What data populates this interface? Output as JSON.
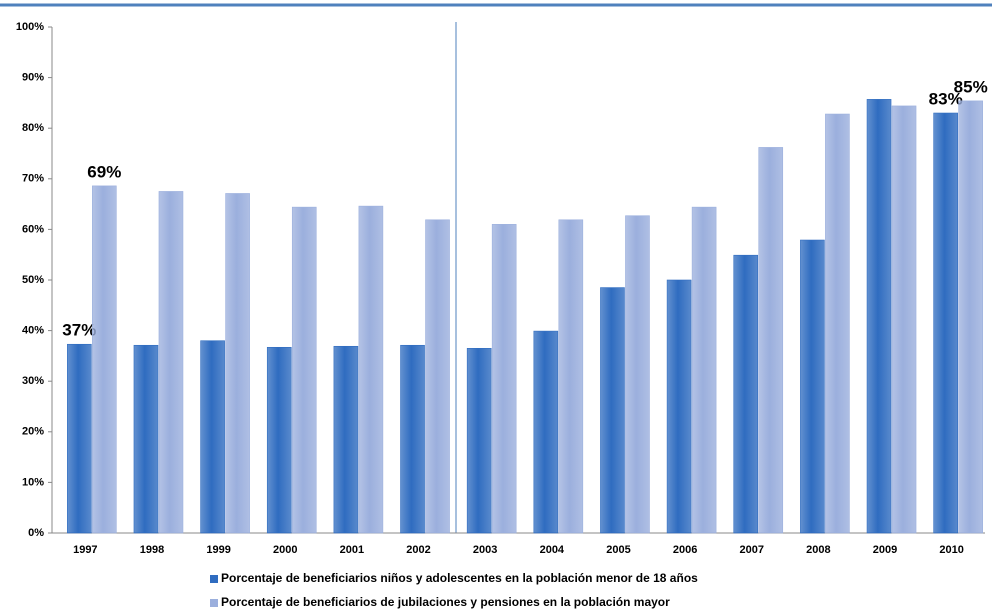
{
  "chart_data": {
    "type": "bar",
    "categories": [
      "1997",
      "1998",
      "1999",
      "2000",
      "2001",
      "2002",
      "2003",
      "2004",
      "2005",
      "2006",
      "2007",
      "2008",
      "2009",
      "2010"
    ],
    "series": [
      {
        "name": "Porcentaje de beneficiarios niños y adolescentes en la población menor de 18 años",
        "color": "#2f6cc0",
        "values": [
          37.3,
          37.1,
          38,
          36.7,
          36.9,
          37.1,
          36.5,
          39.9,
          48.5,
          50,
          54.9,
          57.9,
          85.7,
          83
        ],
        "value_labels": [
          "37%",
          null,
          null,
          null,
          null,
          null,
          null,
          null,
          null,
          null,
          null,
          null,
          null,
          "83%"
        ]
      },
      {
        "name": "Porcentaje de beneficiarios de jubilaciones y pensiones en la población mayor",
        "color": "#9bafdd",
        "values": [
          68.6,
          67.5,
          67.1,
          64.4,
          64.6,
          61.9,
          61,
          61.9,
          62.7,
          64.4,
          76.2,
          82.8,
          84.4,
          85.4
        ],
        "value_labels": [
          "69%",
          null,
          null,
          null,
          null,
          null,
          null,
          null,
          null,
          null,
          null,
          null,
          null,
          "85%"
        ]
      }
    ],
    "ylim": [
      0,
      100
    ],
    "yticks": [
      {
        "value": 0,
        "label": "0%"
      },
      {
        "value": 10,
        "label": "10%"
      },
      {
        "value": 20,
        "label": "20%"
      },
      {
        "value": 30,
        "label": "30%"
      },
      {
        "value": 40,
        "label": "40%"
      },
      {
        "value": 50,
        "label": "50%"
      },
      {
        "value": 60,
        "label": "60%"
      },
      {
        "value": 70,
        "label": "70%"
      },
      {
        "value": 80,
        "label": "80%"
      },
      {
        "value": 90,
        "label": "90%"
      },
      {
        "value": 100,
        "label": "100%"
      }
    ],
    "legend": "bottom"
  }
}
